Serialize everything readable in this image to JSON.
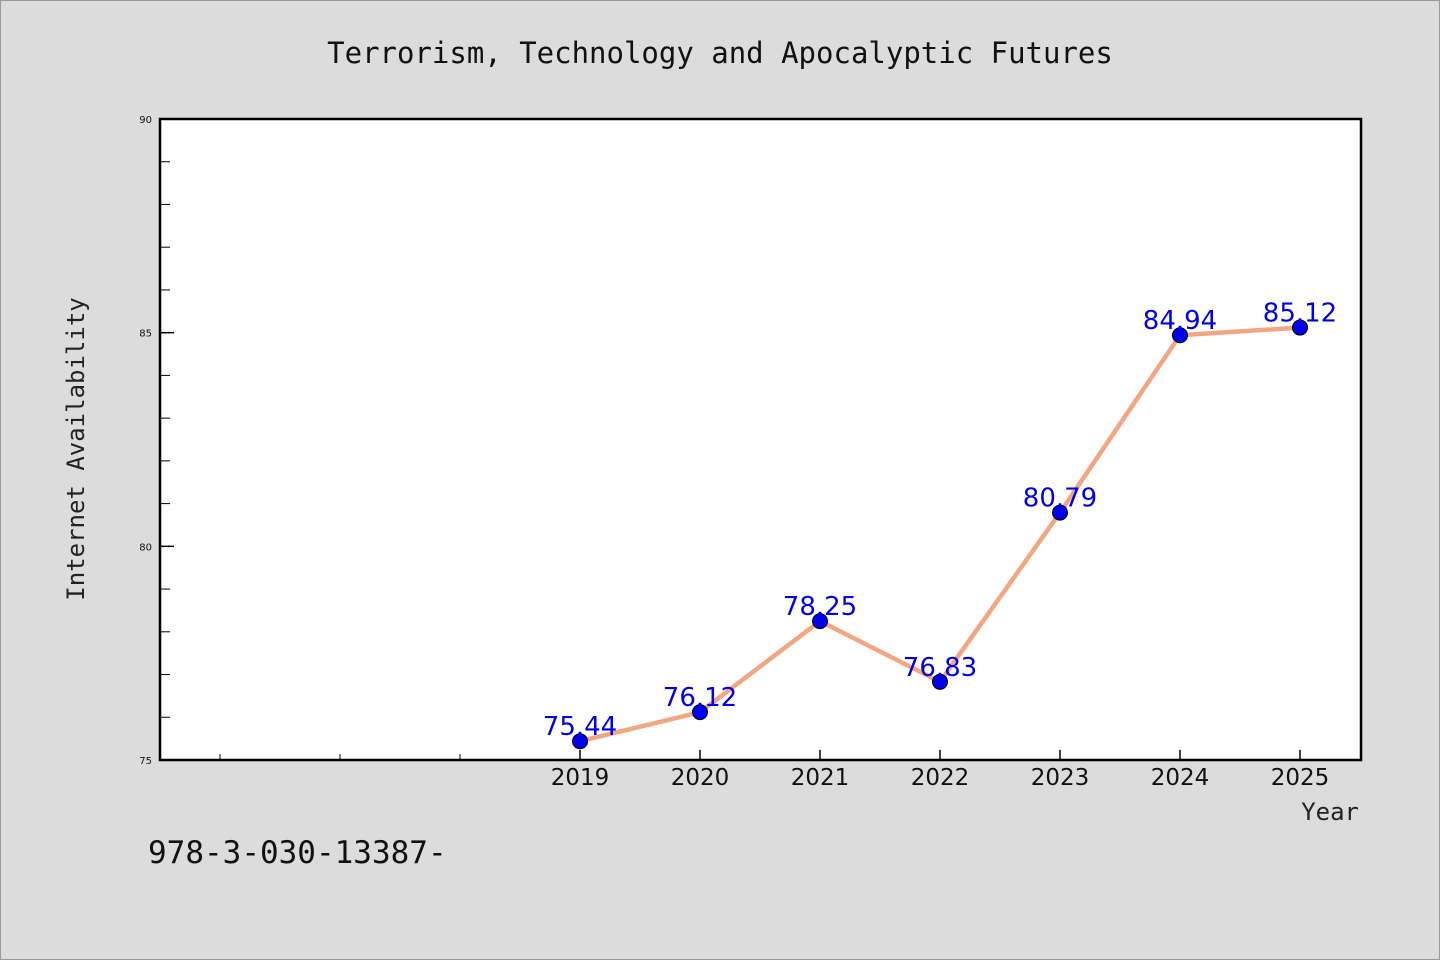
{
  "chart_data": {
    "type": "line",
    "title": "Terrorism, Technology and Apocalyptic Futures",
    "xlabel": "Year",
    "ylabel": "Internet Availability",
    "categories": [
      "2019",
      "2020",
      "2021",
      "2022",
      "2023",
      "2024",
      "2025"
    ],
    "series": [
      {
        "values": [
          75.44,
          76.12,
          78.25,
          76.83,
          80.79,
          84.94,
          85.12
        ]
      }
    ],
    "data_labels": [
      "75.44",
      "76.12",
      "78.25",
      "76.83",
      "80.79",
      "84.94",
      "85.12"
    ],
    "ylim": [
      75,
      90
    ],
    "y_ticks": [
      "75",
      "80",
      "85",
      "90"
    ],
    "grid": false,
    "legend": "none",
    "line_color": "#f4a582",
    "marker_color": "#0000ee",
    "label_color": "#0000ee"
  },
  "footer": {
    "text": "978-3-030-13387-"
  }
}
